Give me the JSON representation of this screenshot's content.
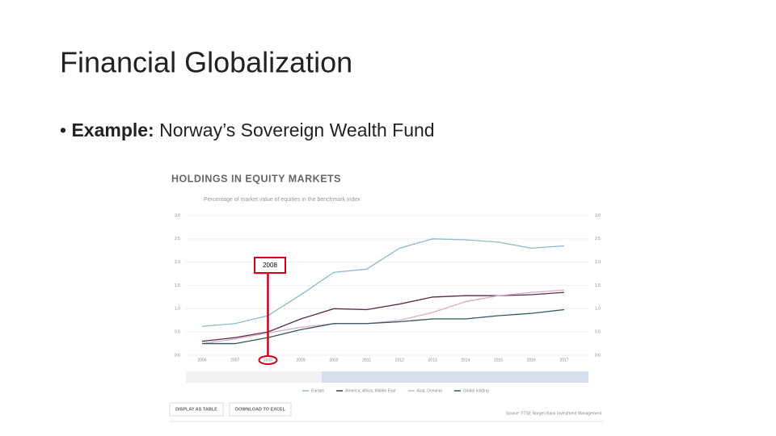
{
  "slide": {
    "title": "Financial Globalization",
    "bullet_bold": "Example:",
    "bullet_text": "Norway’s Sovereign Wealth Fund"
  },
  "chart_data": {
    "type": "line",
    "title": "HOLDINGS IN EQUITY MARKETS",
    "subtitle": "Percentage of market value of equities in the benchmark index",
    "annotation": "2008",
    "categories": [
      "2006",
      "2007",
      "2008",
      "2009",
      "2010",
      "2011",
      "2012",
      "2013",
      "2014",
      "2015",
      "2016",
      "2017"
    ],
    "ylim": [
      0,
      3
    ],
    "yticks": [
      {
        "value": 0,
        "label": "0.0"
      },
      {
        "value": 0.5,
        "label": "0.5"
      },
      {
        "value": 1,
        "label": "1.0"
      },
      {
        "value": 1.5,
        "label": "1.5"
      },
      {
        "value": 2,
        "label": "2.0"
      },
      {
        "value": 2.5,
        "label": "2.5"
      },
      {
        "value": 3,
        "label": "3.0"
      }
    ],
    "grid": true,
    "series": [
      {
        "name": "Europe",
        "color": "#8fb8cf",
        "values": [
          0.62,
          0.68,
          0.85,
          1.3,
          1.78,
          1.85,
          2.3,
          2.5,
          2.48,
          2.43,
          2.3,
          2.35
        ]
      },
      {
        "name": "America, Africa, Middle East",
        "color": "#5a2a4f",
        "values": [
          0.3,
          0.38,
          0.5,
          0.78,
          1.0,
          0.98,
          1.1,
          1.25,
          1.28,
          1.28,
          1.3,
          1.35
        ]
      },
      {
        "name": "Asia, Oceania",
        "color": "#d9aec4",
        "values": [
          0.25,
          0.35,
          0.48,
          0.6,
          0.68,
          0.68,
          0.75,
          0.92,
          1.15,
          1.28,
          1.35,
          1.4
        ]
      },
      {
        "name": "Global holding",
        "color": "#2e5560",
        "values": [
          0.25,
          0.25,
          0.38,
          0.55,
          0.68,
          0.68,
          0.72,
          0.78,
          0.78,
          0.85,
          0.9,
          0.98
        ]
      }
    ],
    "buttons": [
      "DISPLAY AS TABLE",
      "DOWNLOAD TO EXCEL"
    ],
    "source": "Source: FTSE Norges Bank Investment Management"
  }
}
